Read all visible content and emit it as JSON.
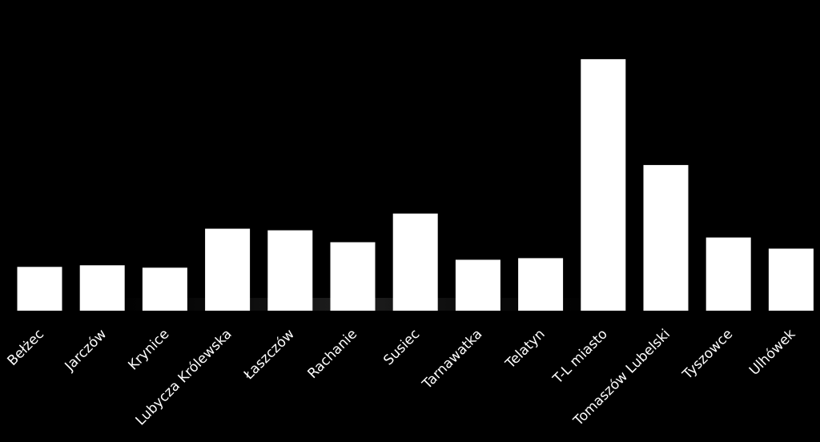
{
  "chart_data": {
    "type": "bar",
    "categories": [
      "Bełżec",
      "Jarczów",
      "Krynice",
      "Lubycza Królewska",
      "Łaszczów",
      "Rachanie",
      "Susiec",
      "Tarnawatka",
      "Telatyn",
      "T-L miasto",
      "Tomaszów Lubelski",
      "Tyszowce",
      "Ulhówek"
    ],
    "values": [
      55,
      57,
      54,
      103,
      101,
      86,
      122,
      64,
      66,
      316,
      183,
      92,
      78
    ],
    "ylim": [
      0,
      330
    ],
    "grid": false,
    "legend": "none",
    "colors": {
      "background": "#000000",
      "bar": "#ffffff",
      "label": "#ffffff",
      "shadow": "#2a2a2a"
    }
  }
}
